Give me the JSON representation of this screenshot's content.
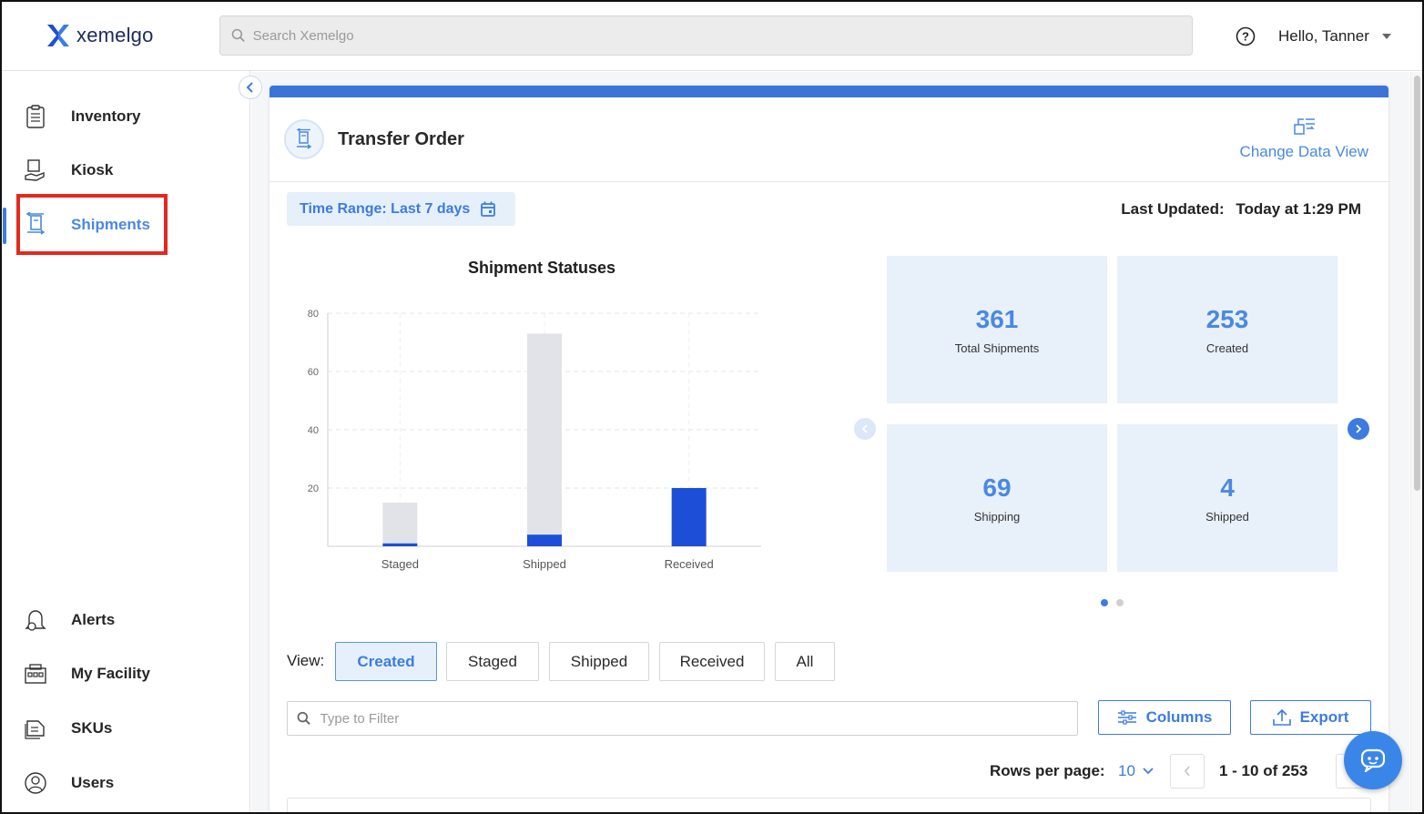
{
  "header": {
    "brand": "xemelgo",
    "search_placeholder": "Search Xemelgo",
    "greeting": "Hello, Tanner"
  },
  "sidebar": {
    "items": [
      {
        "label": "Inventory",
        "icon": "clipboard-icon"
      },
      {
        "label": "Kiosk",
        "icon": "kiosk-icon"
      },
      {
        "label": "Shipments",
        "icon": "shipment-icon",
        "active": true
      },
      {
        "label": "Alerts",
        "icon": "bell-icon"
      },
      {
        "label": "My Facility",
        "icon": "facility-icon"
      },
      {
        "label": "SKUs",
        "icon": "tags-icon"
      },
      {
        "label": "Users",
        "icon": "user-icon"
      }
    ]
  },
  "page": {
    "title": "Transfer Order",
    "change_view_label": "Change Data View",
    "time_range_label": "Time Range: Last 7 days",
    "last_updated_label": "Last Updated:",
    "last_updated_value": "Today at 1:29 PM"
  },
  "chart_data": {
    "type": "bar",
    "title": "Shipment Statuses",
    "categories": [
      "Staged",
      "Shipped",
      "Received"
    ],
    "series": [
      {
        "values": [
          15,
          73,
          0
        ],
        "color": "#e2e3e8"
      },
      {
        "values": [
          1,
          4,
          20
        ],
        "color": "#1d4ed8"
      }
    ],
    "yticks": [
      20,
      40,
      60,
      80
    ],
    "ylim": [
      0,
      80
    ],
    "grid": true
  },
  "stats": [
    {
      "value": "361",
      "label": "Total Shipments"
    },
    {
      "value": "253",
      "label": "Created"
    },
    {
      "value": "69",
      "label": "Shipping"
    },
    {
      "value": "4",
      "label": "Shipped"
    }
  ],
  "view": {
    "label": "View:",
    "options": [
      "Created",
      "Staged",
      "Shipped",
      "Received",
      "All"
    ],
    "selected": "Created"
  },
  "filter": {
    "placeholder": "Type to Filter",
    "columns_label": "Columns",
    "export_label": "Export"
  },
  "pagination": {
    "rows_per_page_label": "Rows per page:",
    "rows_per_page_value": "10",
    "range": "1 - 10 of 253"
  },
  "colors": {
    "accent": "#3d7be0",
    "highlight": "#e3291f",
    "stat_bg": "#e8f0fa"
  }
}
